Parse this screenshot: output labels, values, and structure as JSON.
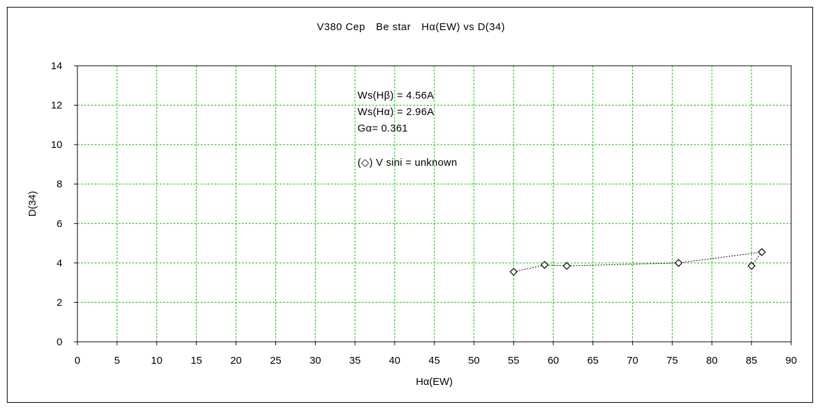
{
  "chart_data": {
    "type": "scatter",
    "title": "V380 Cep　Be star　Hα(EW) vs D(34)",
    "xlabel": "Hα(EW)",
    "ylabel": "D(34)",
    "xlim": [
      0,
      90
    ],
    "ylim": [
      0,
      14
    ],
    "x_ticks": [
      0,
      5,
      10,
      15,
      20,
      25,
      30,
      35,
      40,
      45,
      50,
      55,
      60,
      65,
      70,
      75,
      80,
      85,
      90
    ],
    "y_ticks": [
      0,
      2,
      4,
      6,
      8,
      10,
      12,
      14
    ],
    "grid": true,
    "grid_color": "#00cc00",
    "marker": "diamond",
    "connected": true,
    "series": [
      {
        "x": [
          55.0,
          58.9,
          61.7,
          75.8,
          86.3,
          85.0
        ],
        "y": [
          3.55,
          3.9,
          3.85,
          4.0,
          4.55,
          3.85
        ]
      }
    ],
    "annotations": [
      "Ws(Hβ) = 4.56A",
      "Ws(Hα) = 2.96A",
      "Gα= 0.361",
      "(◇) V sini = unknown"
    ]
  }
}
